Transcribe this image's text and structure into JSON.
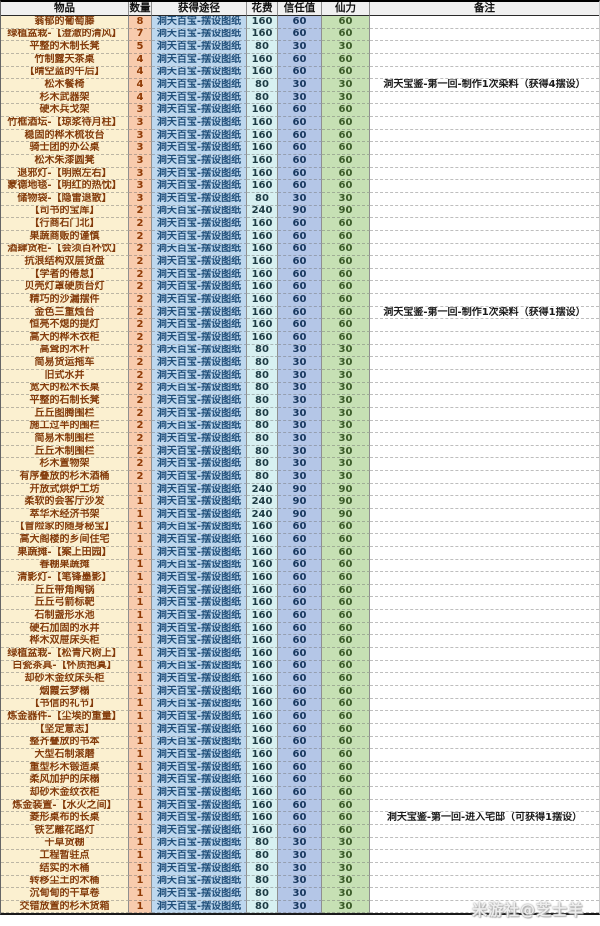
{
  "palette": {
    "item_bg": "#fbf0d0",
    "item_text": "#843c0c",
    "qty_bg": "#f8cbad",
    "qty_text": "#8f3a05",
    "source_bg": "#bdd7ee",
    "source_text": "#1f4e79",
    "cost_bg": "#d7f0f1",
    "cost_text": "#1d3b44",
    "trust_bg": "#b4c6e7",
    "trust_text": "#17375e",
    "energy_bg": "#c6e0b4",
    "energy_text": "#3a5a28",
    "header_bg": "#f0f0f0",
    "note_text": "#1a1a1a"
  },
  "table": {
    "columns": [
      "物品",
      "数量",
      "获得途径",
      "花费",
      "信任值",
      "仙力",
      "备注"
    ],
    "source_label": "洞天百宝-摆设图纸",
    "rows": [
      [
        "蓊郁的葡萄藤",
        8,
        160,
        60,
        60,
        ""
      ],
      [
        "绿植盆栽-【澄澈的清风】",
        7,
        160,
        60,
        60,
        ""
      ],
      [
        "平整的木制长凳",
        5,
        80,
        30,
        30,
        ""
      ],
      [
        "竹制露天茶桌",
        4,
        160,
        60,
        60,
        ""
      ],
      [
        "【晴空蓝的午后】",
        4,
        160,
        60,
        60,
        ""
      ],
      [
        "松木餐椅",
        4,
        80,
        30,
        30,
        "洞天宝鉴-第一回-制作1次染料（获得4摆设）"
      ],
      [
        "杉木武器架",
        4,
        80,
        30,
        30,
        ""
      ],
      [
        "硬木兵戈架",
        3,
        160,
        60,
        60,
        ""
      ],
      [
        "竹框酒坛-【琼浆待月柱】",
        3,
        160,
        60,
        60,
        ""
      ],
      [
        "稳固的桦木梳妆台",
        3,
        160,
        60,
        60,
        ""
      ],
      [
        "骑士团的办公桌",
        3,
        160,
        60,
        60,
        ""
      ],
      [
        "松木朱漆圆凳",
        3,
        160,
        60,
        60,
        ""
      ],
      [
        "退邪灯-【明照左右】",
        3,
        160,
        60,
        60,
        ""
      ],
      [
        "蒙德地毯-【明红的热忱】",
        3,
        160,
        60,
        60,
        ""
      ],
      [
        "储物袋-【隐雷退散】",
        3,
        80,
        30,
        30,
        ""
      ],
      [
        "【司书的宝库】",
        2,
        240,
        90,
        90,
        ""
      ],
      [
        "【行商石门北】",
        2,
        160,
        60,
        60,
        ""
      ],
      [
        "果蔬商贩的谨慎",
        2,
        160,
        60,
        60,
        ""
      ],
      [
        "酒肆货柜-【会须百杯饮】",
        2,
        160,
        60,
        60,
        ""
      ],
      [
        "抗浪结构双层货盘",
        2,
        160,
        60,
        60,
        ""
      ],
      [
        "【学者的倦怠】",
        2,
        160,
        60,
        60,
        ""
      ],
      [
        "贝壳灯罩硬质台灯",
        2,
        160,
        60,
        60,
        ""
      ],
      [
        "精巧的沙漏摆件",
        2,
        160,
        60,
        60,
        ""
      ],
      [
        "金色三重烛台",
        2,
        160,
        60,
        60,
        "洞天宝鉴-第一回-制作1次染料（获得1摆设）"
      ],
      [
        "恒亮不熄的提灯",
        2,
        160,
        60,
        60,
        ""
      ],
      [
        "高大的桦木衣柜",
        2,
        160,
        60,
        60,
        ""
      ],
      [
        "高耸的木杆",
        2,
        80,
        30,
        30,
        ""
      ],
      [
        "简易货运拖车",
        2,
        80,
        30,
        30,
        ""
      ],
      [
        "旧式水井",
        2,
        80,
        30,
        30,
        ""
      ],
      [
        "宽大的松木长桌",
        2,
        80,
        30,
        30,
        ""
      ],
      [
        "平整的石制长凳",
        2,
        80,
        30,
        30,
        ""
      ],
      [
        "丘丘图腾围栏",
        2,
        80,
        30,
        30,
        ""
      ],
      [
        "施工过半的围栏",
        2,
        80,
        30,
        30,
        ""
      ],
      [
        "简易木制围栏",
        2,
        80,
        30,
        30,
        ""
      ],
      [
        "丘丘木制围栏",
        2,
        80,
        30,
        30,
        ""
      ],
      [
        "杉木置物架",
        2,
        80,
        30,
        30,
        ""
      ],
      [
        "有序叠放的杉木酒桶",
        2,
        80,
        30,
        30,
        ""
      ],
      [
        "开放式烘炉工坊",
        1,
        240,
        90,
        90,
        ""
      ],
      [
        "柔软的会客厅沙发",
        1,
        240,
        90,
        90,
        ""
      ],
      [
        "萃华木经济书架",
        1,
        240,
        90,
        90,
        ""
      ],
      [
        "【冒险家的随身秘宝】",
        1,
        160,
        60,
        60,
        ""
      ],
      [
        "高大阁楼的乡间住宅",
        1,
        160,
        60,
        60,
        ""
      ],
      [
        "果蔬摊-【案上田园】",
        1,
        160,
        60,
        60,
        ""
      ],
      [
        "春棚果蔬摊",
        1,
        160,
        60,
        60,
        ""
      ],
      [
        "清影灯-【笔锋墨影】",
        1,
        160,
        60,
        60,
        ""
      ],
      [
        "丘丘带角陶锅",
        1,
        160,
        60,
        60,
        ""
      ],
      [
        "丘丘弓箭标靶",
        1,
        160,
        60,
        60,
        ""
      ],
      [
        "石制盏形水池",
        1,
        160,
        60,
        60,
        ""
      ],
      [
        "硬石加固的水井",
        1,
        160,
        60,
        60,
        ""
      ],
      [
        "桦木双屉床头柜",
        1,
        160,
        60,
        60,
        ""
      ],
      [
        "绿植盆栽-【松青尺树上】",
        1,
        160,
        60,
        60,
        ""
      ],
      [
        "白瓷茶具-【怀质抱真】",
        1,
        160,
        60,
        60,
        ""
      ],
      [
        "却砂木金纹床头柜",
        1,
        160,
        60,
        60,
        ""
      ],
      [
        "烟霞云梦榻",
        1,
        160,
        60,
        60,
        ""
      ],
      [
        "【书信的礼节】",
        1,
        160,
        60,
        60,
        ""
      ],
      [
        "炼金器件-【尘埃的重量】",
        1,
        160,
        60,
        60,
        ""
      ],
      [
        "【坚定意志】",
        1,
        160,
        60,
        60,
        ""
      ],
      [
        "整齐叠放的书本",
        1,
        160,
        60,
        60,
        ""
      ],
      [
        "大型石制滚磨",
        1,
        160,
        60,
        60,
        ""
      ],
      [
        "重型杉木锻造桌",
        1,
        160,
        60,
        60,
        ""
      ],
      [
        "柔风加护的床榻",
        1,
        160,
        60,
        60,
        ""
      ],
      [
        "却砂木金纹衣柜",
        1,
        160,
        60,
        60,
        ""
      ],
      [
        "炼金装置-【水火之间】",
        1,
        160,
        60,
        60,
        ""
      ],
      [
        "菱形桌布的长桌",
        1,
        160,
        60,
        60,
        "洞天宝鉴-第一回-进入宅邸（可获得1摆设）"
      ],
      [
        "铁艺雕花路灯",
        1,
        160,
        60,
        60,
        ""
      ],
      [
        "干草货棚",
        1,
        80,
        30,
        30,
        ""
      ],
      [
        "工程暂驻点",
        1,
        80,
        30,
        30,
        ""
      ],
      [
        "结实的木桶",
        1,
        80,
        30,
        30,
        ""
      ],
      [
        "转移尘土的木桶",
        1,
        80,
        30,
        30,
        ""
      ],
      [
        "沉甸甸的干草卷",
        1,
        80,
        30,
        30,
        ""
      ],
      [
        "交错放置的杉木货箱",
        1,
        80,
        30,
        30,
        ""
      ]
    ]
  },
  "watermark": "米游社@芝士羊"
}
